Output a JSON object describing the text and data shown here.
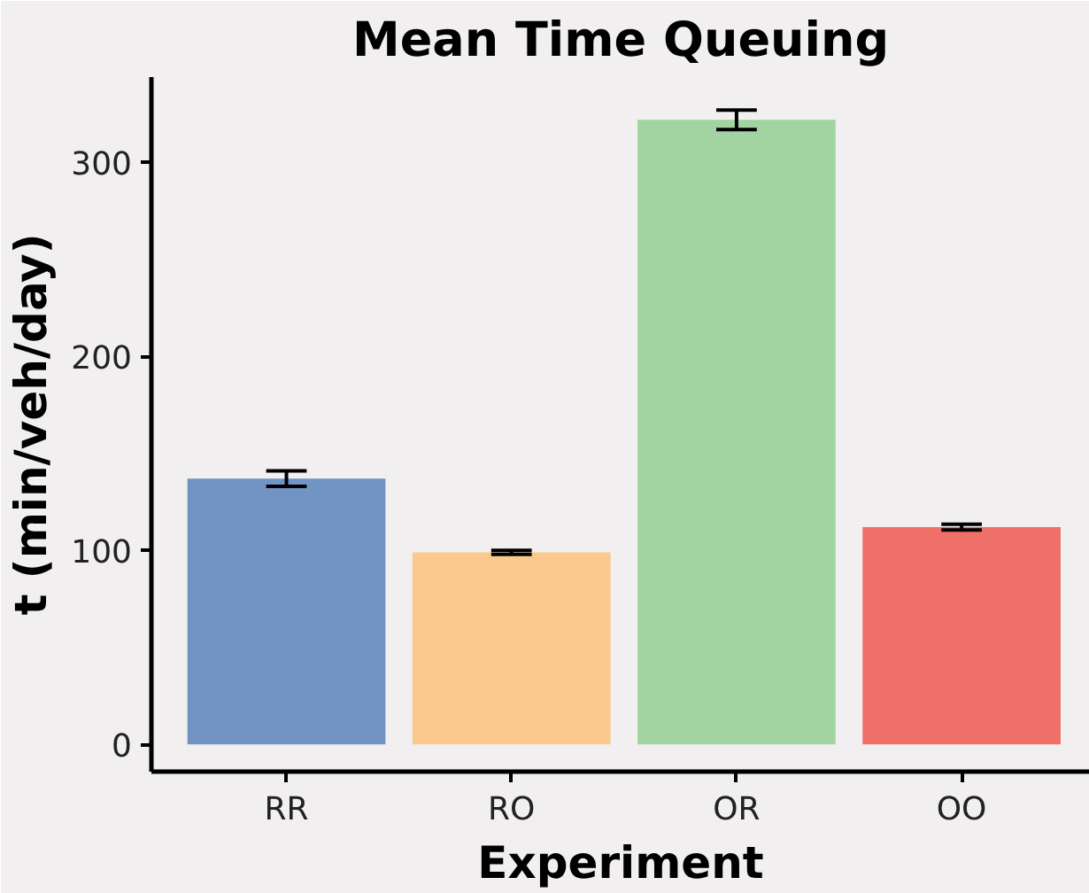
{
  "chart_data": {
    "type": "bar",
    "title": "Mean Time Queuing",
    "xlabel": "Experiment",
    "ylabel": "t (min/veh/day)",
    "categories": [
      "RR",
      "RO",
      "OR",
      "OO"
    ],
    "values": [
      137,
      99,
      322,
      112
    ],
    "errors": [
      4,
      1,
      5,
      1.5
    ],
    "colors": [
      "#7194c4",
      "#fbc98b",
      "#a2d4a1",
      "#ef6f69"
    ],
    "ylim": [
      -14,
      344
    ],
    "yticks": [
      0,
      100,
      200,
      300
    ],
    "grid": false
  }
}
